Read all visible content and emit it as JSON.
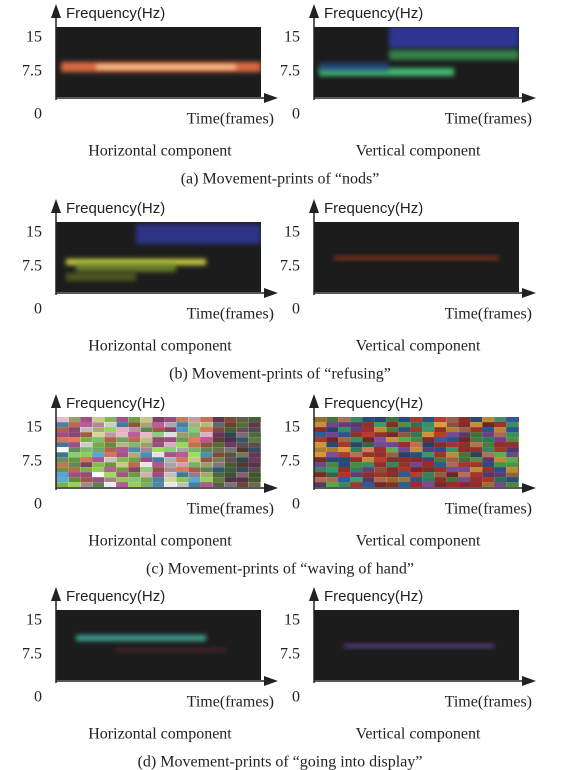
{
  "figures": [
    {
      "caption": "(a) Movement-prints of “nods”",
      "panels": [
        {
          "title": "Horizontal component",
          "y_label": "Frequency(Hz)",
          "x_label": "Time(frames)",
          "yticks": [
            "15",
            "7.5"
          ],
          "origin": "0"
        },
        {
          "title": "Vertical component",
          "y_label": "Frequency(Hz)",
          "x_label": "Time(frames)",
          "yticks": [
            "15",
            "7.5"
          ],
          "origin": "0"
        }
      ]
    },
    {
      "caption": "(b) Movement-prints of “refusing”",
      "panels": [
        {
          "title": "Horizontal component",
          "y_label": "Frequency(Hz)",
          "x_label": "Time(frames)",
          "yticks": [
            "15",
            "7.5"
          ],
          "origin": "0"
        },
        {
          "title": "Vertical component",
          "y_label": "Frequency(Hz)",
          "x_label": "Time(frames)",
          "yticks": [
            "15",
            "7.5"
          ],
          "origin": "0"
        }
      ]
    },
    {
      "caption": "(c) Movement-prints of “waving of hand”",
      "panels": [
        {
          "title": "Horizontal component",
          "y_label": "Frequency(Hz)",
          "x_label": "Time(frames)",
          "yticks": [
            "15",
            "7.5"
          ],
          "origin": "0"
        },
        {
          "title": "Vertical component",
          "y_label": "Frequency(Hz)",
          "x_label": "Time(frames)",
          "yticks": [
            "15",
            "7.5"
          ],
          "origin": "0"
        }
      ]
    },
    {
      "caption": "(d) Movement-prints of “going into display”",
      "panels": [
        {
          "title": "Horizontal component",
          "y_label": "Frequency(Hz)",
          "x_label": "Time(frames)",
          "yticks": [
            "15",
            "7.5"
          ],
          "origin": "0"
        },
        {
          "title": "Vertical component",
          "y_label": "Frequency(Hz)",
          "x_label": "Time(frames)",
          "yticks": [
            "15",
            "7.5"
          ],
          "origin": "0"
        }
      ]
    }
  ]
}
